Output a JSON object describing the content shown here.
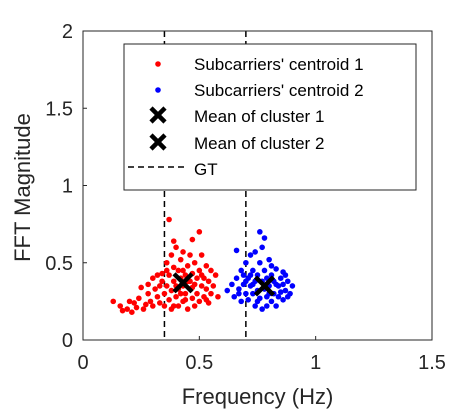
{
  "chart_data": {
    "type": "scatter",
    "title": "",
    "xlabel": "Frequency (Hz)",
    "ylabel": "FFT Magnitude",
    "xlim": [
      0,
      1.5
    ],
    "ylim": [
      0,
      2
    ],
    "xticks": [
      0,
      0.5,
      1,
      1.5
    ],
    "xtick_labels": [
      "0",
      "0.5",
      "1",
      "1.5"
    ],
    "yticks": [
      0,
      0.5,
      1,
      1.5,
      2
    ],
    "ytick_labels": [
      "0",
      "0.5",
      "1",
      "1.5",
      "2"
    ],
    "grid": false,
    "legend_position": "top-right",
    "series": [
      {
        "name": "Subcarriers' centroid 1",
        "kind": "points",
        "color": "#ff0000",
        "points": [
          [
            0.13,
            0.25
          ],
          [
            0.16,
            0.22
          ],
          [
            0.17,
            0.19
          ],
          [
            0.19,
            0.2
          ],
          [
            0.2,
            0.25
          ],
          [
            0.21,
            0.18
          ],
          [
            0.22,
            0.24
          ],
          [
            0.23,
            0.21
          ],
          [
            0.24,
            0.27
          ],
          [
            0.25,
            0.34
          ],
          [
            0.26,
            0.2
          ],
          [
            0.27,
            0.23
          ],
          [
            0.28,
            0.3
          ],
          [
            0.29,
            0.25
          ],
          [
            0.3,
            0.4
          ],
          [
            0.3,
            0.22
          ],
          [
            0.31,
            0.33
          ],
          [
            0.32,
            0.28
          ],
          [
            0.33,
            0.35
          ],
          [
            0.33,
            0.24
          ],
          [
            0.34,
            0.43
          ],
          [
            0.35,
            0.3
          ],
          [
            0.35,
            0.22
          ],
          [
            0.36,
            0.35
          ],
          [
            0.36,
            0.5
          ],
          [
            0.37,
            0.26
          ],
          [
            0.37,
            0.42
          ],
          [
            0.38,
            0.32
          ],
          [
            0.38,
            0.55
          ],
          [
            0.38,
            0.2
          ],
          [
            0.39,
            0.38
          ],
          [
            0.39,
            0.47
          ],
          [
            0.4,
            0.28
          ],
          [
            0.4,
            0.35
          ],
          [
            0.4,
            0.6
          ],
          [
            0.41,
            0.22
          ],
          [
            0.41,
            0.45
          ],
          [
            0.42,
            0.4
          ],
          [
            0.42,
            0.3
          ],
          [
            0.42,
            0.52
          ],
          [
            0.43,
            0.25
          ],
          [
            0.43,
            0.35
          ],
          [
            0.43,
            0.57
          ],
          [
            0.44,
            0.42
          ],
          [
            0.44,
            0.3
          ],
          [
            0.45,
            0.48
          ],
          [
            0.45,
            0.2
          ],
          [
            0.45,
            0.38
          ],
          [
            0.46,
            0.33
          ],
          [
            0.46,
            0.55
          ],
          [
            0.47,
            0.27
          ],
          [
            0.47,
            0.43
          ],
          [
            0.48,
            0.36
          ],
          [
            0.48,
            0.5
          ],
          [
            0.48,
            0.22
          ],
          [
            0.49,
            0.4
          ],
          [
            0.49,
            0.3
          ],
          [
            0.5,
            0.45
          ],
          [
            0.5,
            0.25
          ],
          [
            0.51,
            0.35
          ],
          [
            0.51,
            0.55
          ],
          [
            0.52,
            0.4
          ],
          [
            0.52,
            0.28
          ],
          [
            0.53,
            0.48
          ],
          [
            0.53,
            0.33
          ],
          [
            0.54,
            0.38
          ],
          [
            0.54,
            0.24
          ],
          [
            0.55,
            0.45
          ],
          [
            0.55,
            0.3
          ],
          [
            0.56,
            0.35
          ],
          [
            0.57,
            0.42
          ],
          [
            0.58,
            0.28
          ],
          [
            0.37,
            0.78
          ],
          [
            0.39,
            0.64
          ],
          [
            0.47,
            0.65
          ],
          [
            0.5,
            0.7
          ],
          [
            0.41,
            0.33
          ],
          [
            0.44,
            0.26
          ],
          [
            0.46,
            0.38
          ],
          [
            0.36,
            0.45
          ],
          [
            0.34,
            0.38
          ],
          [
            0.32,
            0.42
          ],
          [
            0.28,
            0.36
          ],
          [
            0.39,
            0.22
          ],
          [
            0.43,
            0.45
          ],
          [
            0.47,
            0.34
          ],
          [
            0.51,
            0.42
          ],
          [
            0.53,
            0.26
          ]
        ]
      },
      {
        "name": "Subcarriers' centroid 2",
        "kind": "points",
        "color": "#0000ff",
        "points": [
          [
            0.62,
            0.32
          ],
          [
            0.64,
            0.36
          ],
          [
            0.65,
            0.28
          ],
          [
            0.66,
            0.4
          ],
          [
            0.67,
            0.33
          ],
          [
            0.68,
            0.25
          ],
          [
            0.68,
            0.45
          ],
          [
            0.69,
            0.36
          ],
          [
            0.7,
            0.3
          ],
          [
            0.7,
            0.5
          ],
          [
            0.71,
            0.4
          ],
          [
            0.71,
            0.26
          ],
          [
            0.72,
            0.35
          ],
          [
            0.72,
            0.55
          ],
          [
            0.73,
            0.3
          ],
          [
            0.73,
            0.45
          ],
          [
            0.74,
            0.38
          ],
          [
            0.74,
            0.22
          ],
          [
            0.75,
            0.42
          ],
          [
            0.75,
            0.32
          ],
          [
            0.76,
            0.5
          ],
          [
            0.76,
            0.27
          ],
          [
            0.77,
            0.38
          ],
          [
            0.77,
            0.6
          ],
          [
            0.77,
            0.2
          ],
          [
            0.78,
            0.33
          ],
          [
            0.78,
            0.45
          ],
          [
            0.79,
            0.28
          ],
          [
            0.79,
            0.4
          ],
          [
            0.8,
            0.35
          ],
          [
            0.8,
            0.52
          ],
          [
            0.81,
            0.25
          ],
          [
            0.81,
            0.42
          ],
          [
            0.82,
            0.3
          ],
          [
            0.82,
            0.38
          ],
          [
            0.83,
            0.46
          ],
          [
            0.83,
            0.22
          ],
          [
            0.84,
            0.35
          ],
          [
            0.84,
            0.28
          ],
          [
            0.85,
            0.4
          ],
          [
            0.85,
            0.31
          ],
          [
            0.86,
            0.36
          ],
          [
            0.86,
            0.26
          ],
          [
            0.87,
            0.42
          ],
          [
            0.87,
            0.32
          ],
          [
            0.88,
            0.38
          ],
          [
            0.89,
            0.3
          ],
          [
            0.9,
            0.35
          ],
          [
            0.76,
            0.7
          ],
          [
            0.78,
            0.66
          ],
          [
            0.74,
            0.57
          ],
          [
            0.66,
            0.58
          ],
          [
            0.72,
            0.42
          ],
          [
            0.8,
            0.3
          ],
          [
            0.83,
            0.36
          ],
          [
            0.7,
            0.38
          ],
          [
            0.75,
            0.25
          ],
          [
            0.79,
            0.22
          ],
          [
            0.73,
            0.36
          ],
          [
            0.81,
            0.48
          ],
          [
            0.69,
            0.42
          ],
          [
            0.67,
            0.3
          ],
          [
            0.86,
            0.44
          ],
          [
            0.88,
            0.28
          ]
        ]
      },
      {
        "name": "Mean of cluster 1",
        "kind": "x-marker",
        "color": "#000000",
        "points": [
          [
            0.43,
            0.37
          ]
        ]
      },
      {
        "name": "Mean of cluster 2",
        "kind": "x-marker",
        "color": "#000000",
        "points": [
          [
            0.78,
            0.35
          ]
        ]
      },
      {
        "name": "GT",
        "kind": "vline-dashed",
        "color": "#000000",
        "x": [
          0.35,
          0.7
        ]
      }
    ]
  }
}
